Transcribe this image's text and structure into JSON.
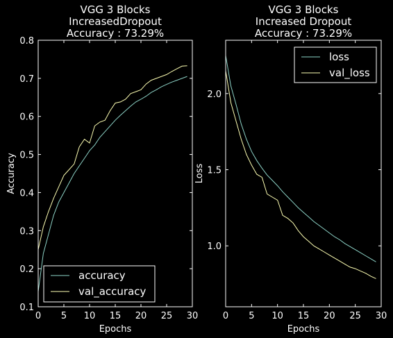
{
  "colors": {
    "background": "#000000",
    "foreground": "#ffffff",
    "train_line": "#8dd3c7",
    "val_line": "#feffb3"
  },
  "chart_data": [
    {
      "type": "line",
      "title_lines": [
        "VGG 3 Blocks",
        "IncreasedDropout",
        "Accuracy : 73.29%"
      ],
      "xlabel": "Epochs",
      "ylabel": "Accuracy",
      "xlim": [
        0,
        30
      ],
      "ylim": [
        0.1,
        0.8
      ],
      "xticks": [
        0,
        5,
        10,
        15,
        20,
        25,
        30
      ],
      "xtick_labels": [
        "0",
        "5",
        "10",
        "15",
        "20",
        "25",
        "30"
      ],
      "yticks": [
        0.1,
        0.2,
        0.3,
        0.4,
        0.5,
        0.6,
        0.7,
        0.8
      ],
      "ytick_labels": [
        "0.1",
        "0.2",
        "0.3",
        "0.4",
        "0.5",
        "0.6",
        "0.7",
        "0.8"
      ],
      "legend_position": "lower-left",
      "x": [
        0,
        1,
        2,
        3,
        4,
        5,
        6,
        7,
        8,
        9,
        10,
        11,
        12,
        13,
        14,
        15,
        16,
        17,
        18,
        19,
        20,
        21,
        22,
        23,
        24,
        25,
        26,
        27,
        28,
        29
      ],
      "series": [
        {
          "name": "accuracy",
          "color": "#8dd3c7",
          "values": [
            0.14,
            0.24,
            0.29,
            0.34,
            0.375,
            0.4,
            0.425,
            0.45,
            0.47,
            0.49,
            0.51,
            0.525,
            0.545,
            0.56,
            0.575,
            0.59,
            0.603,
            0.615,
            0.627,
            0.638,
            0.645,
            0.653,
            0.663,
            0.67,
            0.678,
            0.684,
            0.69,
            0.695,
            0.7,
            0.705
          ]
        },
        {
          "name": "val_accuracy",
          "color": "#feffb3",
          "values": [
            0.25,
            0.31,
            0.35,
            0.385,
            0.415,
            0.445,
            0.46,
            0.475,
            0.52,
            0.54,
            0.53,
            0.575,
            0.585,
            0.59,
            0.615,
            0.635,
            0.638,
            0.645,
            0.66,
            0.665,
            0.67,
            0.685,
            0.695,
            0.7,
            0.705,
            0.71,
            0.718,
            0.725,
            0.732,
            0.733
          ]
        }
      ]
    },
    {
      "type": "line",
      "title_lines": [
        "VGG 3 Blocks",
        "Increased Dropout",
        "Accuracy : 73.29%"
      ],
      "xlabel": "Epochs",
      "ylabel": "Loss",
      "xlim": [
        0,
        30
      ],
      "ylim": [
        0.6,
        2.35
      ],
      "xticks": [
        0,
        5,
        10,
        15,
        20,
        25,
        30
      ],
      "xtick_labels": [
        "0",
        "5",
        "10",
        "15",
        "20",
        "25",
        "30"
      ],
      "yticks": [
        1.0,
        1.5,
        2.0
      ],
      "ytick_labels": [
        "1.0",
        "1.5",
        "2.0"
      ],
      "legend_position": "upper-right",
      "x": [
        0,
        1,
        2,
        3,
        4,
        5,
        6,
        7,
        8,
        9,
        10,
        11,
        12,
        13,
        14,
        15,
        16,
        17,
        18,
        19,
        20,
        21,
        22,
        23,
        24,
        25,
        26,
        27,
        28,
        29
      ],
      "series": [
        {
          "name": "loss",
          "color": "#8dd3c7",
          "values": [
            2.25,
            2.05,
            1.93,
            1.8,
            1.7,
            1.62,
            1.56,
            1.51,
            1.465,
            1.43,
            1.395,
            1.355,
            1.32,
            1.285,
            1.25,
            1.22,
            1.19,
            1.16,
            1.135,
            1.11,
            1.085,
            1.06,
            1.04,
            1.015,
            0.995,
            0.975,
            0.955,
            0.935,
            0.915,
            0.895
          ]
        },
        {
          "name": "val_loss",
          "color": "#feffb3",
          "values": [
            2.15,
            1.94,
            1.82,
            1.7,
            1.6,
            1.53,
            1.47,
            1.45,
            1.34,
            1.32,
            1.3,
            1.2,
            1.18,
            1.15,
            1.1,
            1.06,
            1.03,
            1.0,
            0.98,
            0.96,
            0.94,
            0.92,
            0.9,
            0.88,
            0.86,
            0.85,
            0.835,
            0.82,
            0.8,
            0.785
          ]
        }
      ]
    }
  ]
}
